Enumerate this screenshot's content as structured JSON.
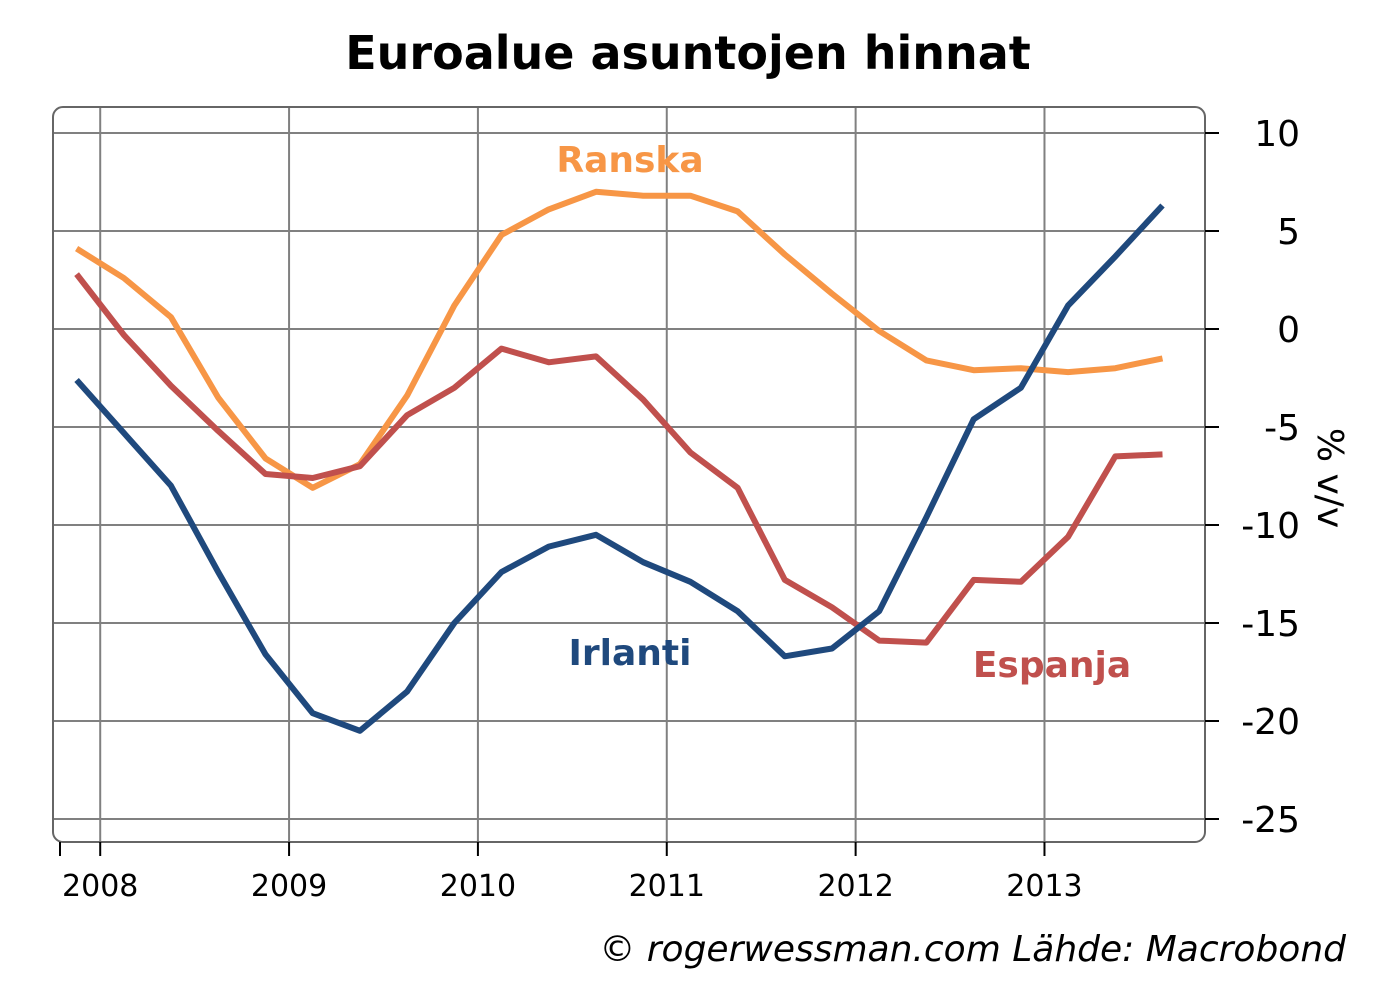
{
  "chart_data": {
    "type": "line",
    "title": "Euroalue asuntojen hinnat",
    "ylabel": "% v/v",
    "ylim": [
      -26,
      11
    ],
    "yticks": [
      10,
      5,
      0,
      -5,
      -10,
      -15,
      -20,
      -25
    ],
    "ytick_labels": [
      "10",
      "5",
      "0",
      "-5",
      "-10",
      "-15",
      "-20",
      "-25"
    ],
    "x_range": [
      2007.75,
      2013.85
    ],
    "x_categories": [
      "2008",
      "2009",
      "2010",
      "2011",
      "2012",
      "2013"
    ],
    "grid": true,
    "x": [
      2007.875,
      2008.125,
      2008.375,
      2008.625,
      2008.875,
      2009.125,
      2009.375,
      2009.625,
      2009.875,
      2010.125,
      2010.375,
      2010.625,
      2010.875,
      2011.125,
      2011.375,
      2011.625,
      2011.875,
      2012.125,
      2012.375,
      2012.625,
      2012.875,
      2013.125,
      2013.375,
      2013.625
    ],
    "series": [
      {
        "name": "Ranska",
        "color": "#f79646",
        "values": [
          4.1,
          2.6,
          0.6,
          -3.5,
          -6.6,
          -8.1,
          -6.9,
          -3.4,
          1.2,
          4.8,
          6.1,
          7.0,
          6.8,
          6.8,
          6.0,
          3.8,
          1.8,
          -0.1,
          -1.6,
          -2.1,
          -2.0,
          -2.2,
          -2.0,
          -1.5
        ]
      },
      {
        "name": "Espanja",
        "color": "#c0504d",
        "values": [
          2.8,
          -0.3,
          -2.9,
          -5.2,
          -7.4,
          -7.6,
          -7.0,
          -4.4,
          -3.0,
          -1.0,
          -1.7,
          -1.4,
          -3.6,
          -6.3,
          -8.1,
          -12.8,
          -14.2,
          -15.9,
          -16.0,
          -12.8,
          -12.9,
          -10.6,
          -6.5,
          -6.4
        ]
      },
      {
        "name": "Irlanti",
        "color": "#1f497d",
        "values": [
          -2.6,
          -5.3,
          -8.0,
          -12.4,
          -16.6,
          -19.6,
          -20.5,
          -18.5,
          -15.0,
          -12.4,
          -11.1,
          -10.5,
          -11.9,
          -12.9,
          -14.4,
          -16.7,
          -16.3,
          -14.4,
          -9.6,
          -4.6,
          -3.0,
          1.2,
          3.7,
          6.3
        ]
      }
    ]
  },
  "labels": {
    "ranska": "Ranska",
    "espanja": "Espanja",
    "irlanti": "Irlanti"
  },
  "credit": "© rogerwessman.com Lähde: Macrobond"
}
